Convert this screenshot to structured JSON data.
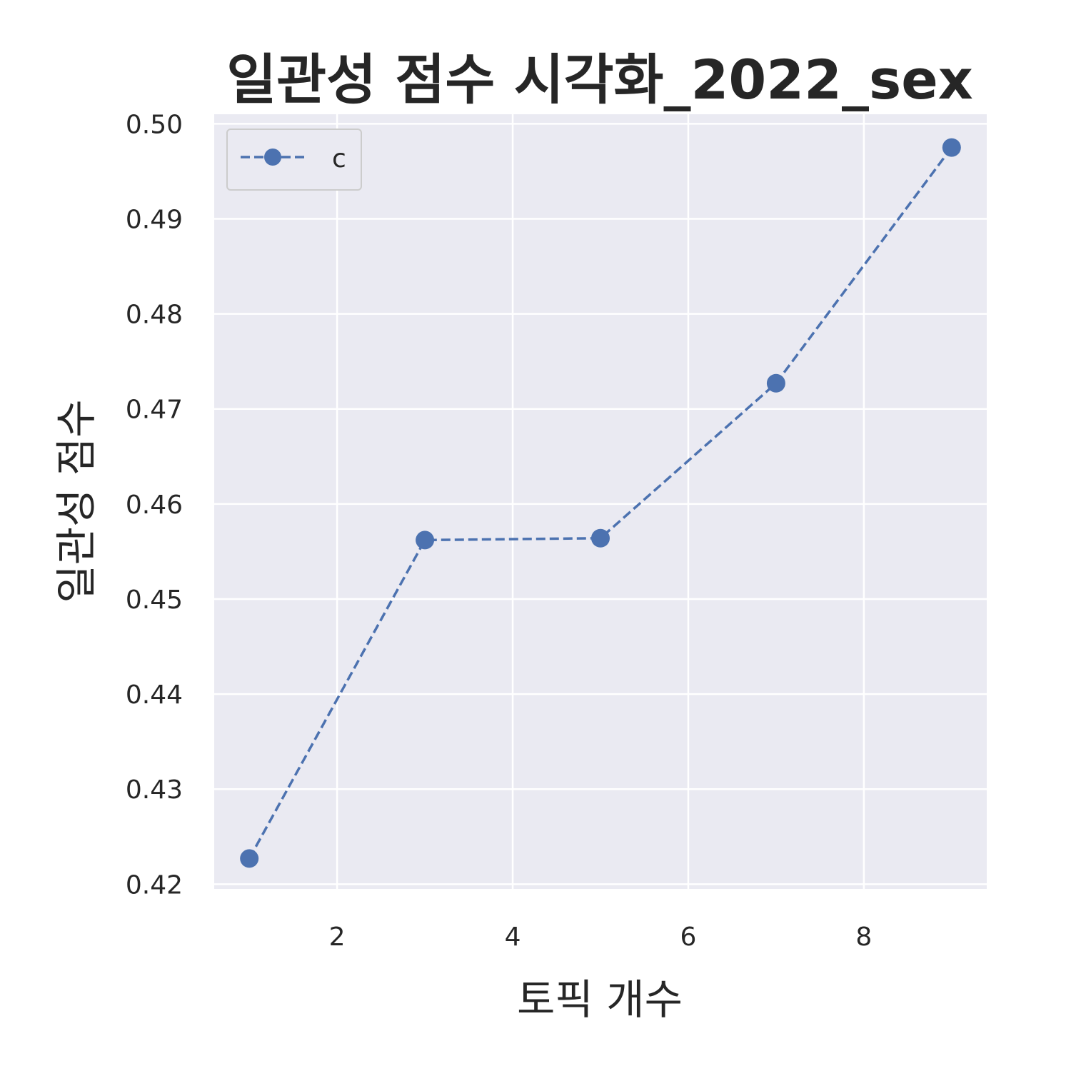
{
  "chart_data": {
    "type": "line",
    "title": "일관성 점수 시각화_2022_sex",
    "xlabel": "토픽 개수",
    "ylabel": "일관성 점수",
    "x_ticks": [
      2,
      4,
      6,
      8
    ],
    "y_ticks": [
      0.42,
      0.43,
      0.44,
      0.45,
      0.46,
      0.47,
      0.48,
      0.49,
      0.5
    ],
    "xlim": [
      0.6,
      9.4
    ],
    "ylim": [
      0.4195,
      0.501
    ],
    "grid": true,
    "legend_position": "upper-left",
    "series": [
      {
        "name": "c",
        "color": "#4c72b0",
        "line_style": "dashed",
        "marker": "circle",
        "x": [
          1,
          3,
          5,
          7,
          9
        ],
        "y": [
          0.4227,
          0.4562,
          0.4564,
          0.4727,
          0.4975
        ]
      }
    ],
    "background_color": "#eaeaf2",
    "grid_color": "#ffffff"
  }
}
